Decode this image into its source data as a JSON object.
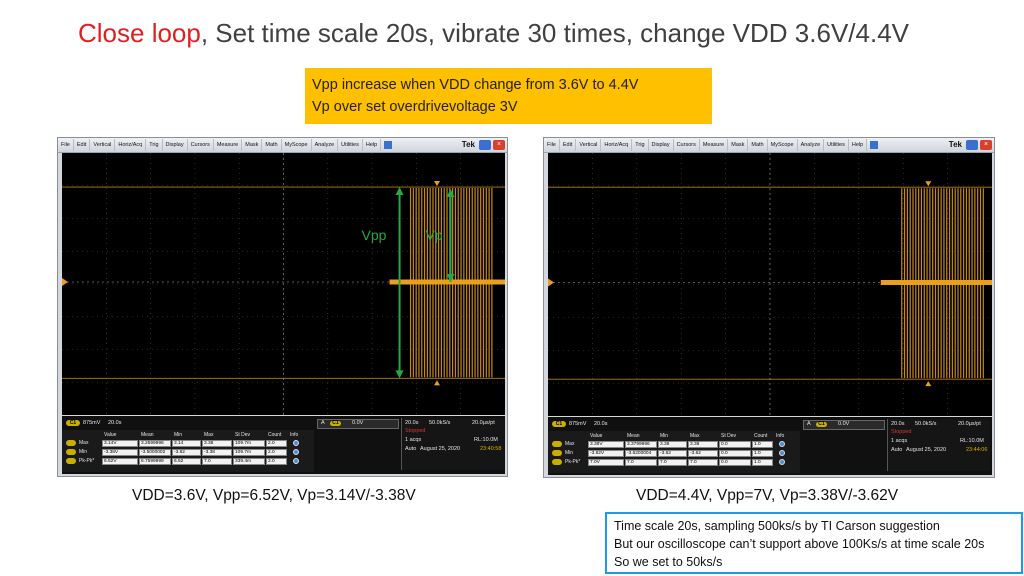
{
  "title": {
    "highlight": "Close loop",
    "rest": ", Set time scale 20s, vibrate 30 times, change VDD 3.6V/4.4V"
  },
  "note_yellow": {
    "line1": "Vpp increase when VDD change from 3.6V to 4.4V",
    "line2": "Vp over set overdrivevoltage 3V"
  },
  "captions": {
    "left": "VDD=3.6V, Vpp=6.52V, Vp=3.14V/-3.38V",
    "right": "VDD=4.4V, Vpp=7V, Vp=3.38V/-3.62V"
  },
  "note_blue": {
    "line1": "Time scale 20s, sampling 500ks/s by TI Carson suggestion",
    "line2": "But our oscilloscope can’t support above 100Ks/s at time scale 20s",
    "line3": "So we set to 50ks/s"
  },
  "menu": [
    "File",
    "Edit",
    "Vertical",
    "Horiz/Acq",
    "Trig",
    "Display",
    "Cursors",
    "Measure",
    "Mask",
    "Math",
    "MyScope",
    "Analyze",
    "Utilities",
    "Help"
  ],
  "brand": "Tek",
  "annotations": {
    "vpp": "Vpp",
    "vp": "Vp"
  },
  "colors": {
    "trace": "#e8a020",
    "arrow": "#22aa44",
    "title_highlight": "#e02020",
    "note_yellow": "#ffc000",
    "note_blue_border": "#1e9be8"
  },
  "scopes": {
    "left": {
      "ch_scale": "875mV",
      "time_div": "20.0s",
      "trig_level": "0.0V",
      "horiz": {
        "scale": "20.0s",
        "rate": "50.0kS/s",
        "res": "20.0µs/pt"
      },
      "state": "Stopped",
      "acqs": "1 acqs",
      "rl": "RL:10.0M",
      "mode": "Auto",
      "date": "August 25, 2020",
      "time": "23:40:58",
      "headers": [
        "Value",
        "Mean",
        "Min",
        "Max",
        "St Dev",
        "Count",
        "Info"
      ],
      "rows": [
        {
          "name": "Max",
          "cells": [
            "3.14V",
            "3.2599996",
            "3.14",
            "3.38",
            "109.7m",
            "2.0"
          ]
        },
        {
          "name": "Min",
          "cells": [
            "-3.38V",
            "-3.5000002",
            "-3.62",
            "-3.38",
            "109.7m",
            "2.0"
          ]
        },
        {
          "name": "Pk-Pk*",
          "cells": [
            "6.52V",
            "6.7599999",
            "6.52",
            "7.0",
            "339.4m",
            "2.0"
          ]
        }
      ]
    },
    "right": {
      "ch_scale": "875mV",
      "time_div": "20.0s",
      "trig_level": "0.0V",
      "horiz": {
        "scale": "20.0s",
        "rate": "50.0kS/s",
        "res": "20.0µs/pt"
      },
      "state": "Stopped",
      "acqs": "1 acqs",
      "rl": "RL:10.0M",
      "mode": "Auto",
      "date": "August 25, 2020",
      "time": "23:44:06",
      "headers": [
        "Value",
        "Mean",
        "Min",
        "Max",
        "St Dev",
        "Count",
        "Info"
      ],
      "rows": [
        {
          "name": "Max",
          "cells": [
            "3.38V",
            "3.3799996",
            "3.38",
            "3.38",
            "0.0",
            "1.0"
          ]
        },
        {
          "name": "Min",
          "cells": [
            "-3.62V",
            "-3.6200004",
            "-3.62",
            "-3.62",
            "0.0",
            "1.0"
          ]
        },
        {
          "name": "Pk-Pk*",
          "cells": [
            "7.0V",
            "7.0",
            "7.0",
            "7.0",
            "0.0",
            "1.0"
          ]
        }
      ]
    }
  }
}
